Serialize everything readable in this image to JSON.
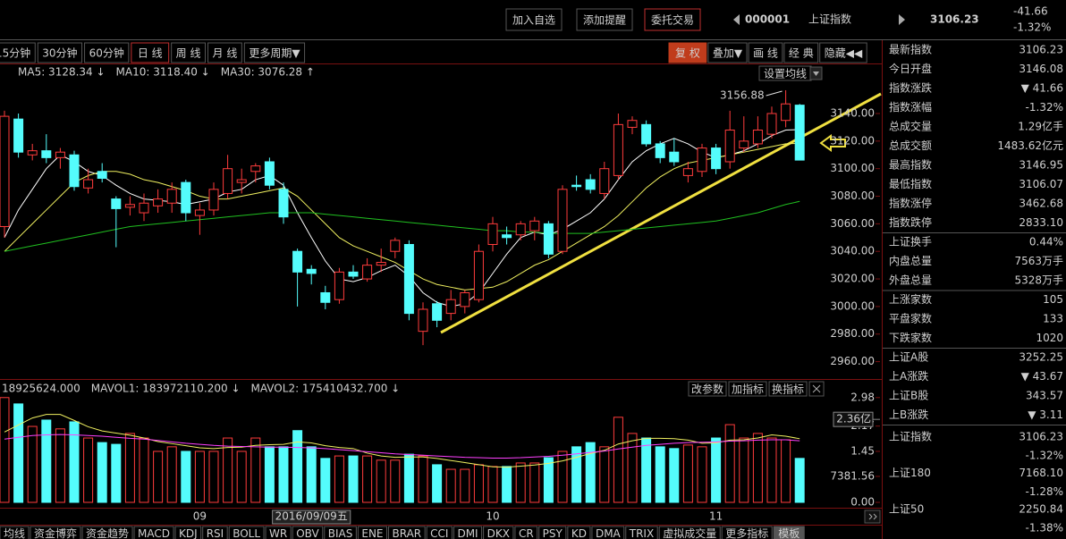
{
  "header": {
    "buttons": [
      "加入自选",
      "添加提醒",
      "委托交易"
    ],
    "code": "000001",
    "name": "上证指数",
    "price": "3106.23",
    "change": "-41.66",
    "change_pct": "-1.32%"
  },
  "period_tabs": [
    "15分钟",
    "30分钟",
    "60分钟",
    "日 线",
    "周 线",
    "月 线",
    "更多周期▼"
  ],
  "tool_tabs": [
    "复 权",
    "叠加▼",
    "画 线",
    "经 典",
    "隐藏◀◀"
  ],
  "indicator_tabs": [
    "均线",
    "资金博弈",
    "资金趋势",
    "MACD",
    "KDJ",
    "RSI",
    "BOLL",
    "WR",
    "OBV",
    "BIAS",
    "ENE",
    "BRAR",
    "CCI",
    "DMI",
    "DKX",
    "CR",
    "PSY",
    "KD",
    "DMA",
    "TRIX",
    "虚拟成交量",
    "更多指标",
    "模板"
  ],
  "quote_panel": {
    "rows": [
      {
        "label": "最新指数",
        "value": "3106.23",
        "color": "#54e854"
      },
      {
        "label": "今日开盘",
        "value": "3146.08",
        "color": "#54e854"
      },
      {
        "label": "指数涨跌",
        "value": "▼ 41.66",
        "color": "#54e854"
      },
      {
        "label": "指数涨幅",
        "value": "-1.32%",
        "color": "#54e854"
      },
      {
        "label": "总成交量",
        "value": "1.29亿手",
        "color": "#ffffff"
      },
      {
        "label": "总成交额",
        "value": "1483.62亿元",
        "color": "#54fcfc"
      },
      {
        "label": "最高指数",
        "value": "3146.95",
        "color": "#54e854"
      },
      {
        "label": "最低指数",
        "value": "3106.07",
        "color": "#54e854"
      },
      {
        "label": "指数涨停",
        "value": "3462.68",
        "color": "#ff4040"
      },
      {
        "label": "指数跌停",
        "value": "2833.10",
        "color": "#54e854"
      },
      {
        "label": "上证换手",
        "value": "0.44%",
        "color": "#ffffff"
      },
      {
        "label": "内盘总量",
        "value": "7563万手",
        "color": "#54e854"
      },
      {
        "label": "外盘总量",
        "value": "5328万手",
        "color": "#ff4040"
      },
      {
        "label": "上涨家数",
        "value": "105",
        "color": "#ff4040"
      },
      {
        "label": "平盘家数",
        "value": "133",
        "color": "#ffffff"
      },
      {
        "label": "下跌家数",
        "value": "1020",
        "color": "#54e854"
      },
      {
        "label": "上证A股",
        "value": "3252.25",
        "color": "#54e854"
      },
      {
        "label": "上A涨跌",
        "value": "▼ 43.67",
        "color": "#54e854"
      },
      {
        "label": "上证B股",
        "value": "343.57",
        "color": "#54e854"
      },
      {
        "label": "上B涨跌",
        "value": "▼ 3.11",
        "color": "#54e854"
      }
    ],
    "indexes": [
      {
        "label": "上证指数",
        "value": "3106.23",
        "change": "-1.32%"
      },
      {
        "label": "上证180",
        "value": "7168.10",
        "change": "-1.28%"
      },
      {
        "label": "上证50",
        "value": "2250.84",
        "change": "-1.38%"
      }
    ]
  },
  "chart_data": [
    {
      "type": "candlestick",
      "settings_button": "设置均线",
      "annotations": [
        "3156.88"
      ],
      "up_color": "#ff3c3c",
      "down_color": "#54fcfc",
      "open": [
        3058,
        3136,
        3110,
        3113,
        3108,
        3110,
        3086,
        3098,
        3078,
        3072,
        3068,
        3073,
        3075,
        3090,
        3066,
        3070,
        3082,
        3090,
        3098,
        3105,
        3085,
        3040,
        3027,
        3010,
        3005,
        3025,
        3020,
        3030,
        3040,
        3045,
        2982,
        3002,
        2995,
        3000,
        3005,
        3045,
        3052,
        3052,
        3055,
        3060,
        3040,
        3088,
        3092,
        3082,
        3095,
        3130,
        3132,
        3118,
        3112,
        3095,
        3098,
        3115,
        3105,
        3115,
        3118,
        3125,
        3135,
        3146.08
      ],
      "high": [
        3142,
        3140,
        3118,
        3125,
        3115,
        3113,
        3100,
        3104,
        3080,
        3080,
        3082,
        3085,
        3090,
        3092,
        3075,
        3090,
        3110,
        3100,
        3104,
        3108,
        3090,
        3042,
        3030,
        3015,
        3028,
        3030,
        3035,
        3042,
        3050,
        3048,
        3003,
        3004,
        3012,
        3012,
        3045,
        3065,
        3058,
        3062,
        3065,
        3062,
        3088,
        3095,
        3096,
        3105,
        3140,
        3138,
        3135,
        3120,
        3122,
        3105,
        3118,
        3118,
        3142,
        3138,
        3138,
        3145,
        3156.88,
        3146.95
      ],
      "low": [
        3050,
        3108,
        3106,
        3104,
        3100,
        3084,
        3082,
        3090,
        3043,
        3066,
        3062,
        3068,
        3068,
        3062,
        3052,
        3066,
        3078,
        3082,
        3090,
        3085,
        3060,
        3000,
        3016,
        2998,
        3002,
        3020,
        3018,
        3025,
        3035,
        2990,
        2972,
        2985,
        2990,
        2995,
        3003,
        3040,
        3045,
        3048,
        3048,
        3035,
        3038,
        3084,
        3082,
        3078,
        3092,
        3125,
        3116,
        3104,
        3102,
        3090,
        3094,
        3096,
        3100,
        3112,
        3115,
        3122,
        3130,
        3106.07
      ],
      "close": [
        3138,
        3112,
        3113,
        3108,
        3112,
        3087,
        3092,
        3093,
        3071,
        3074,
        3075,
        3078,
        3085,
        3068,
        3070,
        3085,
        3100,
        3092,
        3102,
        3088,
        3065,
        3025,
        3024,
        3003,
        3025,
        3022,
        3030,
        3032,
        3048,
        2995,
        2998,
        2990,
        3005,
        3010,
        3040,
        3060,
        3050,
        3060,
        3062,
        3038,
        3085,
        3087,
        3085,
        3100,
        3132,
        3135,
        3118,
        3108,
        3105,
        3100,
        3115,
        3100,
        3128,
        3120,
        3128,
        3140,
        3147,
        3106.23
      ],
      "series": [
        {
          "name": "MA5: 3128.34 ↓",
          "color": "#ffffff",
          "values": [
            3050,
            3070,
            3085,
            3100,
            3110,
            3105,
            3098,
            3095,
            3088,
            3082,
            3078,
            3077,
            3076,
            3074,
            3076,
            3078,
            3083,
            3085,
            3092,
            3095,
            3088,
            3068,
            3050,
            3033,
            3020,
            3018,
            3021,
            3026,
            3030,
            3022,
            3010,
            3003,
            3000,
            3002,
            3010,
            3024,
            3038,
            3050,
            3054,
            3052,
            3056,
            3062,
            3068,
            3078,
            3092,
            3105,
            3113,
            3118,
            3122,
            3118,
            3112,
            3108,
            3110,
            3113,
            3118,
            3124,
            3128,
            3128.34
          ]
        },
        {
          "name": "MA10: 3118.40 ↓",
          "color": "#f0f060",
          "values": [
            3040,
            3050,
            3060,
            3070,
            3080,
            3090,
            3095,
            3098,
            3098,
            3096,
            3092,
            3090,
            3087,
            3084,
            3080,
            3078,
            3078,
            3080,
            3082,
            3084,
            3086,
            3080,
            3070,
            3060,
            3050,
            3044,
            3040,
            3036,
            3032,
            3026,
            3020,
            3016,
            3014,
            3012,
            3013,
            3014,
            3018,
            3024,
            3030,
            3034,
            3040,
            3046,
            3052,
            3058,
            3066,
            3076,
            3086,
            3094,
            3100,
            3104,
            3106,
            3108,
            3110,
            3112,
            3114,
            3116,
            3118,
            3118.4
          ]
        },
        {
          "name": "MA30: 3076.28 ↑",
          "color": "#20c020",
          "values": [
            3040,
            3042,
            3044,
            3046,
            3048,
            3050,
            3052,
            3054,
            3056,
            3058,
            3059,
            3060,
            3061,
            3062,
            3063,
            3064,
            3065,
            3066,
            3067,
            3068,
            3068,
            3068,
            3068,
            3067,
            3066,
            3065,
            3064,
            3063,
            3062,
            3061,
            3060,
            3059,
            3058,
            3057,
            3056,
            3055,
            3055,
            3054,
            3054,
            3053,
            3053,
            3053,
            3053,
            3054,
            3055,
            3056,
            3057,
            3058,
            3059,
            3060,
            3061,
            3062,
            3064,
            3066,
            3068,
            3071,
            3074,
            3076.28
          ]
        }
      ],
      "ylim": [
        2950,
        3164
      ],
      "yticks": [
        {
          "value": 3140,
          "label": "3140.00"
        },
        {
          "value": 3120,
          "label": "3120.00"
        },
        {
          "value": 3100,
          "label": "3100.00"
        },
        {
          "value": 3080,
          "label": "3080.00"
        },
        {
          "value": 3060,
          "label": "3060.00"
        },
        {
          "value": 3040,
          "label": "3040.00"
        },
        {
          "value": 3020,
          "label": "3020.00"
        },
        {
          "value": 3000,
          "label": "3000.00"
        },
        {
          "value": 2980,
          "label": "2980.00"
        },
        {
          "value": 2960,
          "label": "2960.00"
        }
      ]
    },
    {
      "type": "bar",
      "name": "18925624.000",
      "buttons": [
        "改参数",
        "加指标",
        "换指标"
      ],
      "categories": [
        null,
        null,
        null,
        null,
        null,
        null,
        null,
        null,
        null,
        null,
        null,
        null,
        null,
        null,
        "09",
        null,
        null,
        null,
        null,
        null,
        null,
        null,
        "2016/09/09五",
        null,
        null,
        null,
        null,
        null,
        null,
        null,
        null,
        null,
        null,
        null,
        null,
        "10",
        null,
        null,
        null,
        null,
        null,
        null,
        null,
        null,
        null,
        null,
        null,
        null,
        null,
        null,
        null,
        "11",
        null,
        null,
        null,
        null,
        null,
        null
      ],
      "values": [
        2.98,
        2.8,
        2.16,
        2.34,
        2.09,
        2.29,
        1.83,
        1.7,
        1.65,
        1.96,
        1.83,
        1.45,
        1.58,
        1.45,
        1.45,
        1.45,
        1.83,
        1.45,
        1.83,
        1.58,
        1.58,
        2.04,
        1.58,
        1.25,
        1.32,
        1.32,
        1.32,
        1.2,
        1.2,
        1.37,
        1.32,
        1.07,
        0.94,
        0.94,
        1.07,
        1.02,
        1.02,
        1.12,
        1.12,
        1.27,
        1.45,
        1.58,
        1.7,
        1.58,
        2.42,
        1.96,
        1.83,
        1.58,
        1.53,
        1.63,
        1.58,
        1.83,
        2.21,
        1.83,
        1.96,
        1.83,
        1.78,
        1.25
      ],
      "series": [
        {
          "name": "MAVOL1: 183972110.200 ↓",
          "color": "#f0f060",
          "values": [
            2.0,
            2.2,
            2.4,
            2.5,
            2.5,
            2.33,
            2.15,
            2.03,
            1.97,
            1.91,
            1.83,
            1.73,
            1.67,
            1.61,
            1.55,
            1.53,
            1.56,
            1.57,
            1.62,
            1.64,
            1.65,
            1.72,
            1.69,
            1.61,
            1.56,
            1.53,
            1.4,
            1.32,
            1.28,
            1.29,
            1.29,
            1.25,
            1.19,
            1.13,
            1.07,
            1.01,
            1.0,
            1.03,
            1.06,
            1.11,
            1.18,
            1.28,
            1.39,
            1.48,
            1.66,
            1.75,
            1.82,
            1.82,
            1.81,
            1.77,
            1.68,
            1.69,
            1.77,
            1.78,
            1.83,
            1.92,
            1.88,
            1.81
          ]
        },
        {
          "name": "MAVOL2: 175410432.700 ↓",
          "color": "#ff40ff",
          "values": [
            1.8,
            1.85,
            1.9,
            1.92,
            1.93,
            1.92,
            1.9,
            1.88,
            1.85,
            1.82,
            1.8,
            1.76,
            1.72,
            1.68,
            1.65,
            1.62,
            1.6,
            1.59,
            1.58,
            1.57,
            1.57,
            1.56,
            1.55,
            1.53,
            1.5,
            1.47,
            1.44,
            1.41,
            1.38,
            1.36,
            1.34,
            1.32,
            1.3,
            1.28,
            1.27,
            1.26,
            1.26,
            1.27,
            1.29,
            1.31,
            1.34,
            1.38,
            1.42,
            1.46,
            1.52,
            1.57,
            1.62,
            1.65,
            1.68,
            1.7,
            1.71,
            1.72,
            1.74,
            1.75,
            1.77,
            1.78,
            1.78,
            1.75
          ]
        }
      ],
      "current_label": {
        "value": 2.36,
        "label": "2.36亿"
      },
      "ylim": [
        0,
        3
      ],
      "yticks": [
        2.98,
        2.17,
        1.45,
        {
          "value": 0.738156,
          "label": "7381.56"
        },
        {
          "value": 0,
          "label": "0.00"
        }
      ]
    }
  ]
}
